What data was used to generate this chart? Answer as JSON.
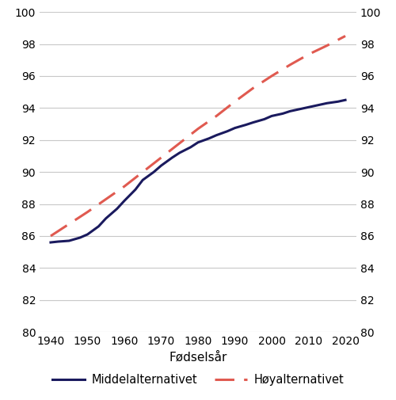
{
  "xlabel": "Fødselsår",
  "ylim": [
    80,
    100
  ],
  "yticks": [
    80,
    82,
    84,
    86,
    88,
    90,
    92,
    94,
    96,
    98,
    100
  ],
  "xticks": [
    1940,
    1950,
    1960,
    1970,
    1980,
    1990,
    2000,
    2010,
    2020
  ],
  "xlim": [
    1937,
    2023
  ],
  "middel_x": [
    1940,
    1942,
    1945,
    1948,
    1950,
    1953,
    1955,
    1958,
    1960,
    1963,
    1965,
    1968,
    1970,
    1973,
    1975,
    1978,
    1980,
    1983,
    1985,
    1988,
    1990,
    1993,
    1995,
    1998,
    2000,
    2003,
    2005,
    2008,
    2010,
    2013,
    2015,
    2018,
    2020
  ],
  "middel_y": [
    85.6,
    85.65,
    85.7,
    85.9,
    86.1,
    86.6,
    87.1,
    87.7,
    88.2,
    88.9,
    89.5,
    90.0,
    90.4,
    90.9,
    91.2,
    91.55,
    91.85,
    92.1,
    92.3,
    92.55,
    92.75,
    92.95,
    93.1,
    93.3,
    93.5,
    93.65,
    93.8,
    93.95,
    94.05,
    94.2,
    94.3,
    94.4,
    94.5
  ],
  "hoy_x": [
    1940,
    1945,
    1950,
    1955,
    1960,
    1965,
    1970,
    1975,
    1980,
    1985,
    1990,
    1995,
    2000,
    2005,
    2010,
    2015,
    2020
  ],
  "hoy_y": [
    86.0,
    86.75,
    87.5,
    88.3,
    89.1,
    90.0,
    90.9,
    91.8,
    92.7,
    93.5,
    94.4,
    95.25,
    96.0,
    96.7,
    97.35,
    97.9,
    98.5
  ],
  "middel_color": "#1a1a5e",
  "hoy_color": "#e05a50",
  "middel_label": "Middelalternativet",
  "hoy_label": "Høyalternativet",
  "grid_color": "#c8c8c8",
  "background_color": "#ffffff",
  "legend_fontsize": 10.5,
  "tick_fontsize": 10,
  "xlabel_fontsize": 11,
  "line_width": 2.2,
  "dash_on": 8,
  "dash_off": 4
}
